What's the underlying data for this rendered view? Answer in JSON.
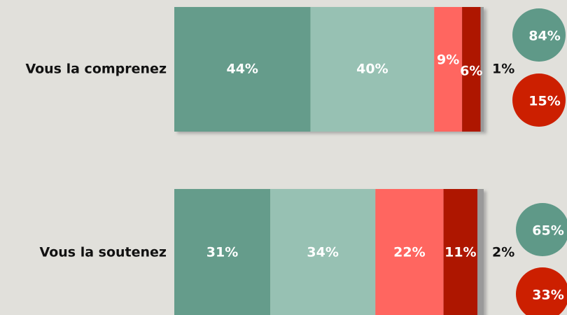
{
  "chart_data": {
    "type": "stacked-bar-horizontal",
    "categories": [
      "Vous la comprenez",
      "Vous la soutenez"
    ],
    "series": [
      {
        "color": "#659c8b",
        "values": [
          44,
          31
        ],
        "value_labels": [
          "44%",
          "31%"
        ]
      },
      {
        "color": "#97c1b3",
        "values": [
          40,
          34
        ],
        "value_labels": [
          "40%",
          "34%"
        ]
      },
      {
        "color": "#ff6660",
        "values": [
          9,
          22
        ],
        "value_labels": [
          "9%",
          "22%"
        ]
      },
      {
        "color": "#ae1600",
        "values": [
          6,
          11
        ],
        "value_labels": [
          "6%",
          "11%"
        ]
      },
      {
        "color": "#9a9a9a",
        "values": [
          1,
          2
        ],
        "value_labels": [
          "1%",
          "2%"
        ]
      }
    ],
    "totals": [
      {
        "color": "#5f9988",
        "values": [
          84,
          65
        ],
        "value_labels": [
          "84%",
          "65%"
        ]
      },
      {
        "color": "#cc1f00",
        "values": [
          15,
          33
        ],
        "value_labels": [
          "15%",
          "33%"
        ]
      }
    ],
    "xlim": [
      0,
      100
    ]
  }
}
